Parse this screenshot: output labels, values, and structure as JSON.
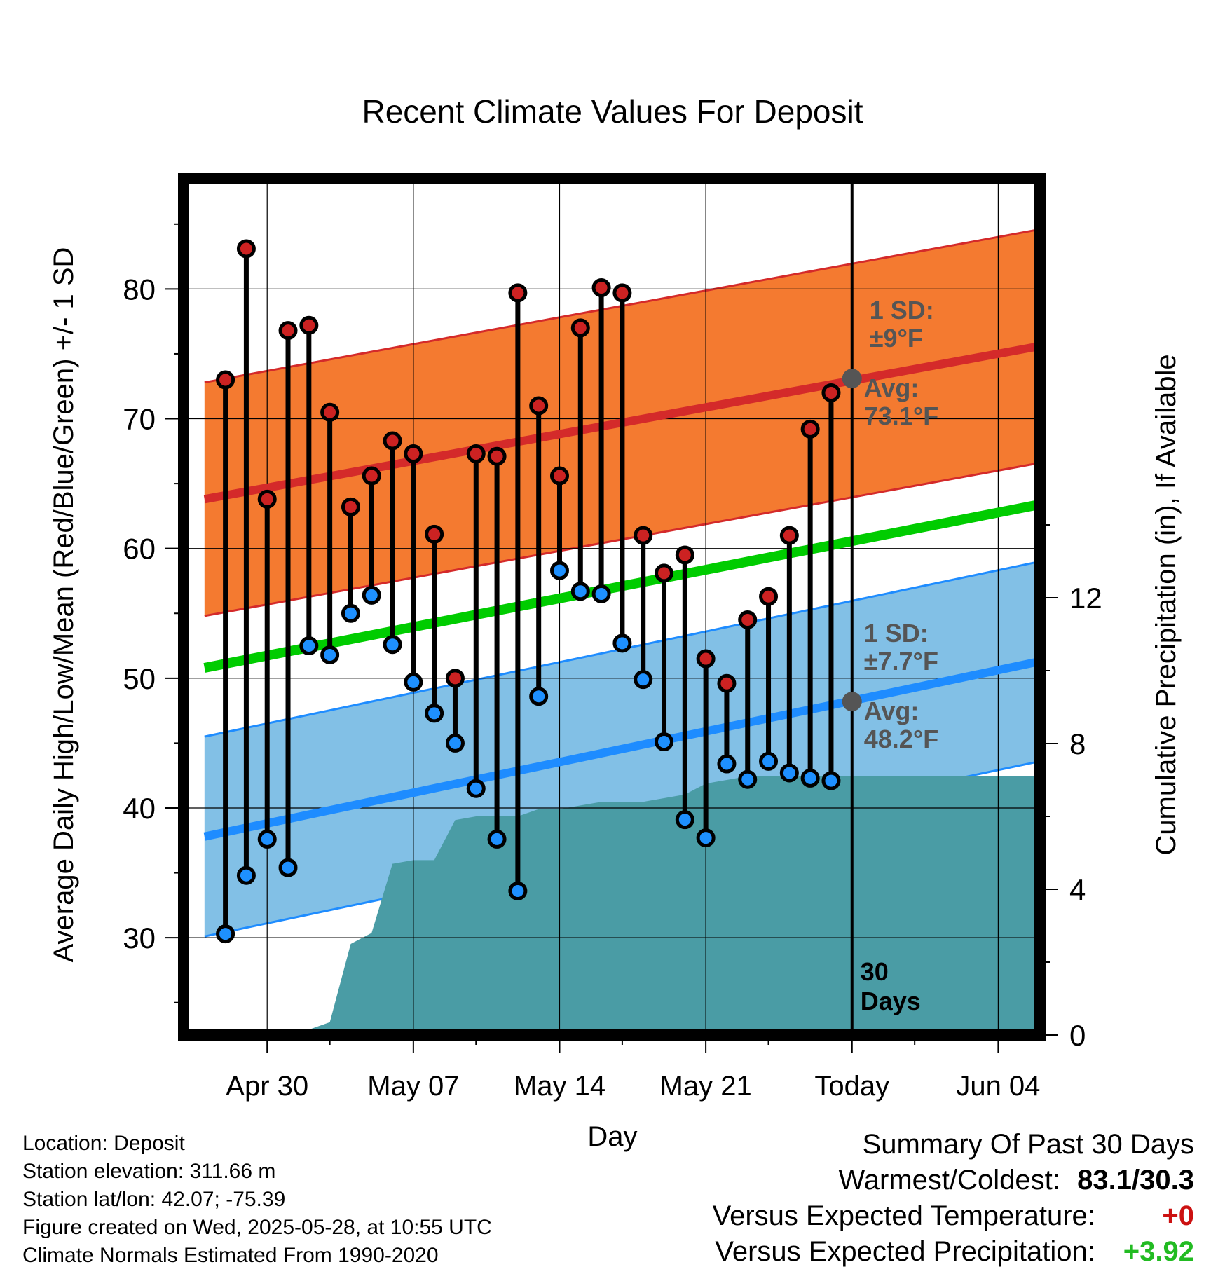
{
  "chart_data": {
    "type": "line",
    "title": "Recent Climate Values For Deposit",
    "xlabel": "Day",
    "ylabel": "Average Daily High/Low/Mean (Red/Blue/Green) +/- 1 SD",
    "ylabel_right": "Cumulative Precipitation (in), If Available",
    "x_ticks": [
      "Apr 30",
      "May 07",
      "May 14",
      "May 21",
      "Today",
      "Jun 04"
    ],
    "x_range": [
      "2025-04-26",
      "2025-06-06"
    ],
    "ylim": [
      22.5,
      88.5
    ],
    "y_ticks": [
      30,
      40,
      50,
      60,
      70,
      80
    ],
    "ylim_right": [
      0,
      23.5
    ],
    "y_ticks_right": [
      0,
      4,
      8,
      12
    ],
    "grid": true,
    "colors": {
      "high_marker": "#cc2222",
      "low_marker": "#1e90ff",
      "high_band": "#f47a30",
      "low_band": "#82c0e6",
      "high_avg_line": "#d42a2a",
      "low_avg_line": "#1e8cff",
      "mean_line": "#00cc00",
      "precip": "#4a9ca5",
      "annotation": "#555555",
      "positive": "#22bb22",
      "negative": "#cc1111"
    },
    "normals": {
      "x": [
        "2025-04-27",
        "2025-06-06"
      ],
      "high_avg": [
        63.8,
        75.6
      ],
      "high_sd": 9,
      "low_avg": [
        37.8,
        51.3
      ],
      "low_sd": 7.7,
      "mean": [
        50.8,
        63.4
      ]
    },
    "observed": {
      "dates": [
        "2025-04-28",
        "2025-04-29",
        "2025-04-30",
        "2025-05-01",
        "2025-05-02",
        "2025-05-03",
        "2025-05-04",
        "2025-05-05",
        "2025-05-06",
        "2025-05-07",
        "2025-05-08",
        "2025-05-09",
        "2025-05-10",
        "2025-05-11",
        "2025-05-12",
        "2025-05-13",
        "2025-05-14",
        "2025-05-15",
        "2025-05-16",
        "2025-05-17",
        "2025-05-18",
        "2025-05-19",
        "2025-05-20",
        "2025-05-21",
        "2025-05-22",
        "2025-05-23",
        "2025-05-24",
        "2025-05-25",
        "2025-05-26",
        "2025-05-27"
      ],
      "high": [
        73.0,
        83.1,
        63.8,
        76.8,
        77.2,
        70.5,
        63.2,
        65.6,
        68.3,
        67.3,
        61.1,
        50.0,
        67.3,
        67.1,
        79.7,
        71.0,
        65.6,
        77.0,
        80.1,
        79.7,
        61.0,
        58.1,
        59.5,
        51.5,
        49.6,
        54.5,
        56.3,
        61.0,
        69.2,
        72.0
      ],
      "low": [
        30.3,
        34.8,
        37.6,
        35.4,
        52.5,
        51.8,
        55.0,
        56.4,
        52.6,
        49.7,
        47.3,
        45.0,
        41.5,
        37.6,
        33.6,
        48.6,
        58.3,
        56.7,
        56.5,
        52.7,
        49.9,
        45.1,
        39.1,
        37.7,
        43.4,
        42.2,
        43.6,
        42.7,
        42.3,
        42.1
      ]
    },
    "precip": {
      "dates": [
        "2025-04-27",
        "2025-04-28",
        "2025-04-29",
        "2025-04-30",
        "2025-05-01",
        "2025-05-02",
        "2025-05-03",
        "2025-05-04",
        "2025-05-05",
        "2025-05-06",
        "2025-05-07",
        "2025-05-08",
        "2025-05-09",
        "2025-05-10",
        "2025-05-11",
        "2025-05-12",
        "2025-05-13",
        "2025-05-14",
        "2025-05-15",
        "2025-05-16",
        "2025-05-17",
        "2025-05-18",
        "2025-05-19",
        "2025-05-20",
        "2025-05-21",
        "2025-05-22",
        "2025-05-23",
        "2025-05-24",
        "2025-05-25",
        "2025-05-26",
        "2025-05-27",
        "2025-05-28",
        "2025-06-06"
      ],
      "cumulative": [
        0.0,
        0.0,
        0.02,
        0.05,
        0.15,
        0.15,
        0.35,
        2.5,
        2.8,
        4.7,
        4.8,
        4.8,
        5.9,
        6.0,
        6.0,
        6.0,
        6.2,
        6.2,
        6.3,
        6.4,
        6.4,
        6.4,
        6.5,
        6.6,
        6.9,
        7.0,
        7.1,
        7.1,
        7.1,
        7.1,
        7.1,
        7.1,
        7.1
      ]
    },
    "today": "2025-05-28",
    "annotations": {
      "high_sd_label": "1 SD:",
      "high_sd_value": "±9°F",
      "high_avg_label": "Avg:",
      "high_avg_value": "73.1°F",
      "low_sd_label": "1 SD:",
      "low_sd_value": "±7.7°F",
      "low_avg_label": "Avg:",
      "low_avg_value": "48.2°F",
      "high_avg_today": 73.1,
      "low_avg_today": 48.2,
      "days_number": "30",
      "days_word": "Days"
    }
  },
  "footer": {
    "location": "Location: Deposit",
    "elevation": "Station elevation: 311.66 m",
    "latlon": "Station lat/lon: 42.07; -75.39",
    "created": "Figure created on Wed, 2025-05-28, at 10:55 UTC",
    "normals": "Climate Normals Estimated From 1990-2020"
  },
  "summary": {
    "title": "Summary Of Past 30 Days",
    "warmest_label": "Warmest/Coldest:",
    "warmest_value": "83.1/30.3",
    "temp_label": "Versus Expected Temperature:",
    "temp_value": "+0",
    "precip_label": "Versus Expected Precipitation:",
    "precip_value": "+3.92"
  }
}
